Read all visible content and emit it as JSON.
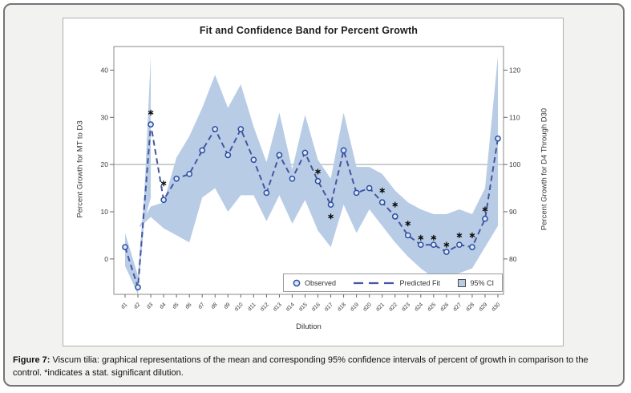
{
  "figure": {
    "caption_label": "Figure 7:",
    "caption_text": "Viscum tilia: graphical representations of the mean and corresponding 95% confidence intervals of percent of growth in comparison to the control. *indicates a stat. significant dilution."
  },
  "chart_data": {
    "type": "line",
    "title": "Fit and Confidence Band for Percent Growth",
    "xlabel": "Dilution",
    "ylabel_left": "Percent Growth for MT to D3",
    "ylabel_right": "Percent Growth for D4 Through D30",
    "categories": [
      "d1",
      "d2",
      "d3",
      "d4",
      "d5",
      "d6",
      "d7",
      "d8",
      "d9",
      "d10",
      "d11",
      "d12",
      "d13",
      "d14",
      "d15",
      "d16",
      "d17",
      "d18",
      "d19",
      "d20",
      "d21",
      "d22",
      "d23",
      "d24",
      "d25",
      "d26",
      "d27",
      "d28",
      "d29",
      "d30"
    ],
    "values": [
      2.5,
      -6,
      28.5,
      12.5,
      17,
      18,
      23,
      27.5,
      22,
      27.5,
      21,
      14,
      22,
      17,
      22.5,
      16.5,
      11.5,
      23,
      14,
      15,
      12,
      9,
      5,
      3,
      3,
      1.5,
      3,
      2.5,
      8.5,
      25.5
    ],
    "ci_upper": [
      5.5,
      -3.5,
      43,
      12,
      21.5,
      26,
      32,
      39,
      32,
      37,
      28,
      20.5,
      31,
      19,
      30.5,
      21,
      17,
      31,
      19.5,
      19.5,
      18,
      14.5,
      12,
      10.5,
      9.5,
      9.5,
      10.5,
      9.5,
      15,
      43
    ],
    "ci_lower": [
      -1.5,
      -7.5,
      13,
      6.5,
      5,
      3.5,
      13,
      15,
      10,
      13.5,
      13.5,
      8,
      13.5,
      7.5,
      12.5,
      6,
      2.5,
      11.5,
      5.5,
      10.5,
      7,
      3.5,
      0.5,
      -2,
      -4,
      -4.5,
      -3,
      -2,
      2.5,
      7
    ],
    "band_segments": [
      {
        "x": [
          1,
          2,
          2.5,
          3
        ],
        "upper": [
          5.5,
          -3.5,
          14,
          43
        ],
        "lower": [
          -1.5,
          -7.5,
          8,
          13
        ]
      },
      {
        "x": [
          2.15,
          3,
          4,
          5,
          6,
          7,
          8,
          9,
          10,
          11,
          12,
          13,
          14,
          15,
          16,
          17,
          18,
          19,
          20,
          21,
          22,
          23,
          24,
          25,
          26,
          27,
          28,
          29,
          30
        ],
        "upper": [
          7.2,
          11.1,
          12,
          21.5,
          26,
          32,
          39,
          32,
          37,
          28,
          20.5,
          31,
          19,
          30.5,
          21,
          17,
          31,
          19.5,
          19.5,
          18,
          14.5,
          12,
          10.5,
          9.5,
          9.5,
          10.5,
          9.5,
          15,
          43
        ],
        "lower": [
          6.7,
          8.9,
          6.5,
          5,
          3.5,
          13,
          15,
          10,
          13.5,
          13.5,
          8,
          13.5,
          7.5,
          12.5,
          6,
          2.5,
          11.5,
          5.5,
          10.5,
          7,
          3.5,
          0.5,
          -2,
          -4,
          -4.5,
          -3,
          -2,
          2.5,
          7
        ]
      }
    ],
    "significant_stars": [
      {
        "category": "d3",
        "value": 31
      },
      {
        "category": "d4",
        "value": 16
      },
      {
        "category": "d16",
        "value": 18.5
      },
      {
        "category": "d17",
        "value": 9
      },
      {
        "category": "d21",
        "value": 14.5
      },
      {
        "category": "d22",
        "value": 11.5
      },
      {
        "category": "d23",
        "value": 7.5
      },
      {
        "category": "d24",
        "value": 4.5
      },
      {
        "category": "d25",
        "value": 4.5
      },
      {
        "category": "d26",
        "value": 3
      },
      {
        "category": "d27",
        "value": 5
      },
      {
        "category": "d28",
        "value": 5
      },
      {
        "category": "d29",
        "value": 10.5
      }
    ],
    "left_ticks": [
      0,
      10,
      20,
      30,
      40
    ],
    "right_ticks": [
      80,
      90,
      100,
      110,
      120
    ],
    "ylim_left": [
      -7.5,
      45
    ],
    "ylim_right": [
      72.5,
      125
    ],
    "reference_line": {
      "left_value": 20,
      "right_value": 100
    },
    "legend": [
      {
        "label": "Observed",
        "symbol": "circle"
      },
      {
        "label": "Predicted Fit",
        "symbol": "dashed-line"
      },
      {
        "label": "95% CI",
        "symbol": "square"
      }
    ],
    "grid": false,
    "legend_position": "inside-bottom-right",
    "colors": {
      "band": "#b8cce6",
      "line": "#4656a0",
      "marker_stroke": "#2c4da0",
      "marker_fill": "#dce9f6",
      "star": "#0a0a0a",
      "reference": "#9e9e9e",
      "frame": "#8a8a8a",
      "tick": "#666666",
      "text": "#3c3c3c"
    }
  }
}
